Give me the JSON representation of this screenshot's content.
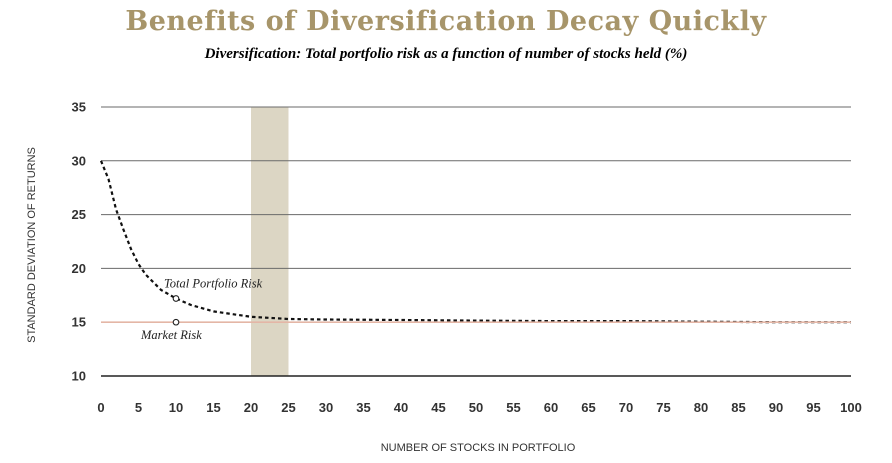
{
  "title": "Benefits of Diversification Decay Quickly",
  "subtitle": "Diversification: Total portfolio risk as a function of number of stocks held (%)",
  "chart_data": {
    "type": "line",
    "xlabel": "NUMBER OF STOCKS IN PORTFOLIO",
    "ylabel": "STANDARD DEVIATION OF RETURNS",
    "xlim": [
      0,
      100
    ],
    "ylim": [
      10,
      35
    ],
    "x_ticks": [
      0,
      5,
      10,
      15,
      20,
      25,
      30,
      35,
      40,
      45,
      50,
      55,
      60,
      65,
      70,
      75,
      80,
      85,
      90,
      95,
      100
    ],
    "y_ticks": [
      10,
      15,
      20,
      25,
      30,
      35
    ],
    "grid": "horizontal",
    "series": [
      {
        "name": "Total Portfolio Risk",
        "style": "dotted",
        "color": "#111111",
        "x": [
          0,
          1,
          2,
          3,
          4,
          5,
          6,
          8,
          10,
          12,
          15,
          20,
          25,
          30,
          40,
          50,
          60,
          70,
          80,
          90,
          100
        ],
        "y": [
          30,
          28.3,
          25.5,
          23.6,
          21.8,
          20.4,
          19.4,
          18.0,
          17.2,
          16.6,
          16.0,
          15.5,
          15.3,
          15.25,
          15.2,
          15.15,
          15.1,
          15.1,
          15.05,
          15.0,
          15.0
        ]
      },
      {
        "name": "Market Risk",
        "style": "solid",
        "color": "#e4b6a6",
        "x": [
          0,
          100
        ],
        "y": [
          15,
          15
        ]
      }
    ],
    "annotations": [
      {
        "text": "Total Portfolio Risk",
        "marker_x": 10,
        "marker_y": 17.2
      },
      {
        "text": "Market Risk",
        "marker_x": 10,
        "marker_y": 15
      }
    ],
    "highlight_band": {
      "x_start": 20,
      "x_end": 25,
      "color": "#dcd6c4"
    }
  }
}
